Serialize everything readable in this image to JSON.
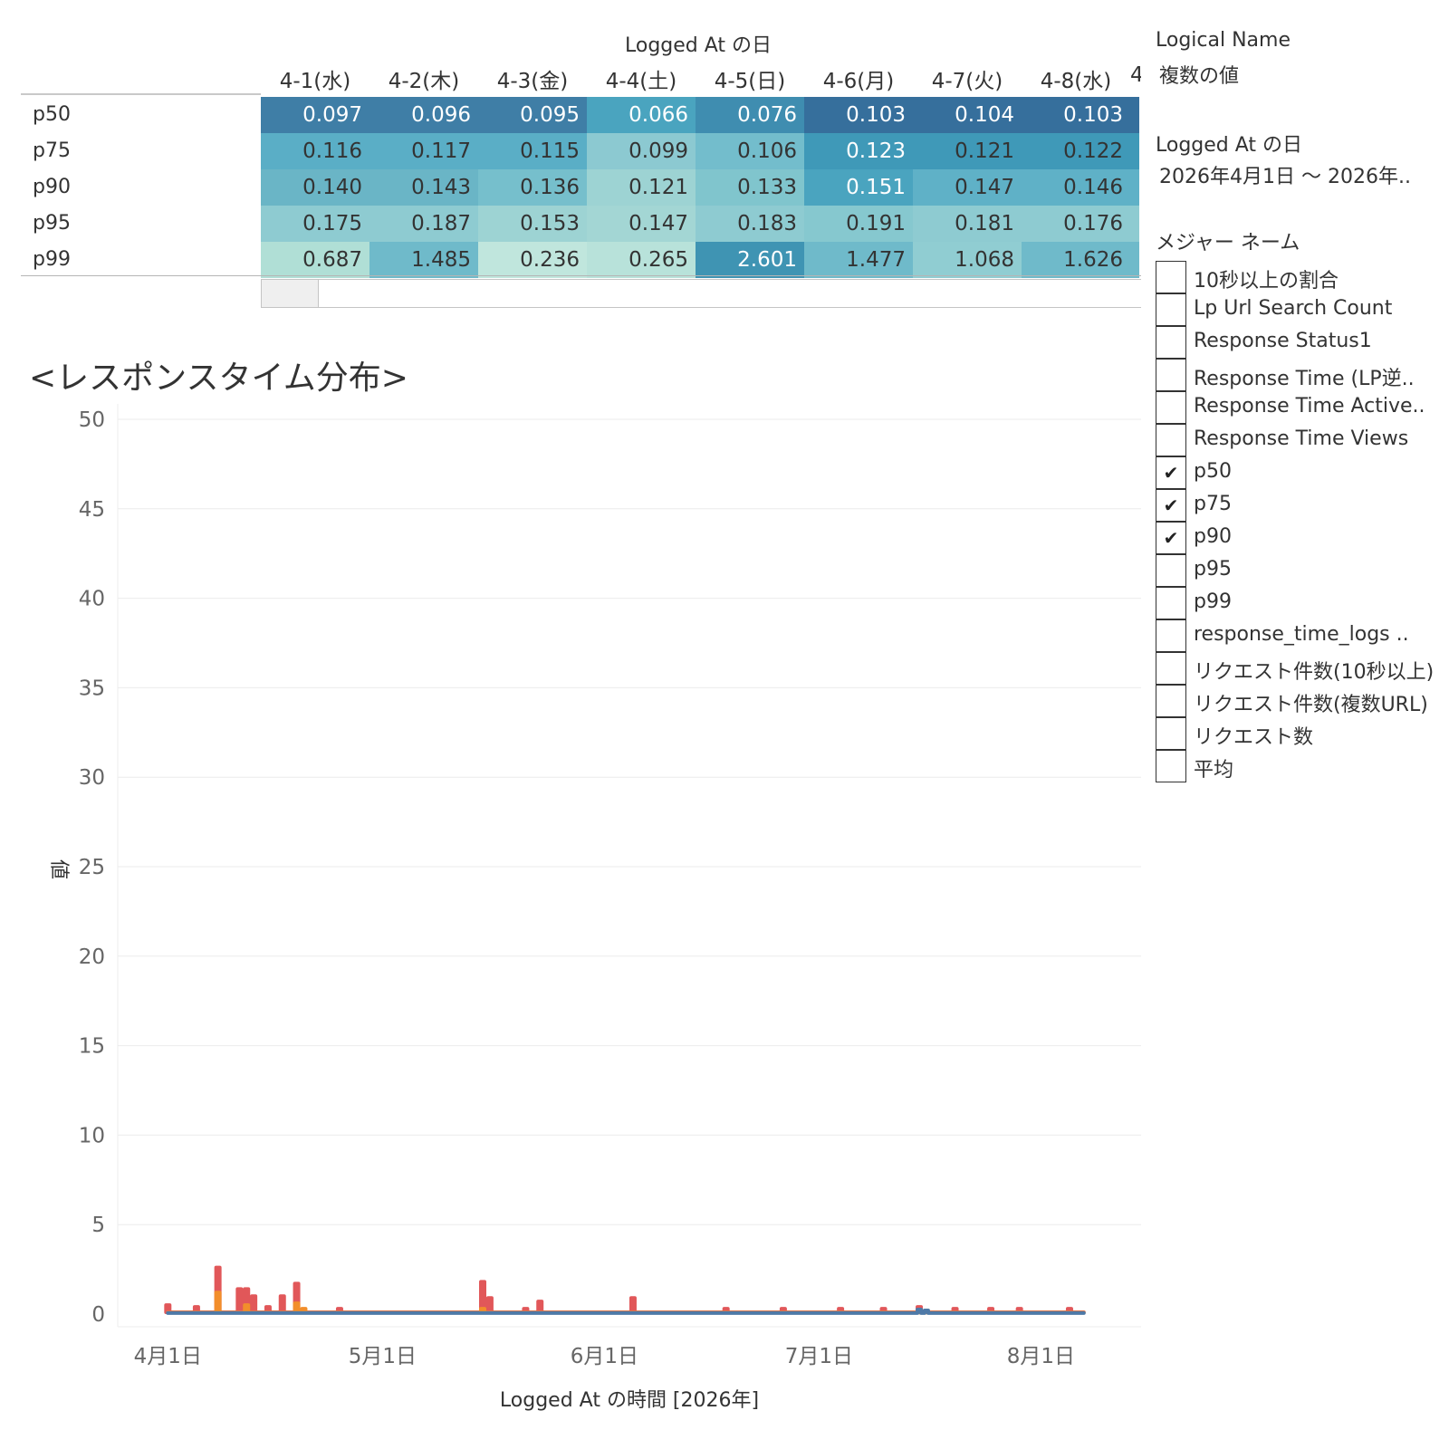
{
  "crosstab": {
    "column_title": "Logged At の日",
    "columns": [
      "4-1(水)",
      "4-2(木)",
      "4-3(金)",
      "4-4(土)",
      "4-5(日)",
      "4-6(月)",
      "4-7(火)",
      "4-8(水)",
      "4"
    ],
    "rows": [
      {
        "label": "p50",
        "values": [
          "0.097",
          "0.096",
          "0.095",
          "0.066",
          "0.076",
          "0.103",
          "0.104",
          "0.103"
        ]
      },
      {
        "label": "p75",
        "values": [
          "0.116",
          "0.117",
          "0.115",
          "0.099",
          "0.106",
          "0.123",
          "0.121",
          "0.122"
        ]
      },
      {
        "label": "p90",
        "values": [
          "0.140",
          "0.143",
          "0.136",
          "0.121",
          "0.133",
          "0.151",
          "0.147",
          "0.146"
        ]
      },
      {
        "label": "p95",
        "values": [
          "0.175",
          "0.187",
          "0.153",
          "0.147",
          "0.183",
          "0.191",
          "0.181",
          "0.176"
        ]
      },
      {
        "label": "p99",
        "values": [
          "0.687",
          "1.485",
          "0.236",
          "0.265",
          "2.601",
          "1.477",
          "1.068",
          "1.626"
        ]
      }
    ],
    "cell_colors": [
      [
        "#3f7ea6",
        "#3f7ea6",
        "#3f7ea6",
        "#4aa4bf",
        "#3f8db0",
        "#366f9c",
        "#366f9c",
        "#366f9c",
        "#366f9c"
      ],
      [
        "#5aaec6",
        "#5aaec6",
        "#5aaec6",
        "#8cc9d1",
        "#73bdcc",
        "#3f99b8",
        "#3f99b8",
        "#3f99b8",
        "#3f99b8"
      ],
      [
        "#6ab5c6",
        "#6ab5c6",
        "#76bfcc",
        "#9dd3d3",
        "#80c5cd",
        "#4aa4bf",
        "#5fb1c7",
        "#5fb1c7",
        "#5fb1c7"
      ],
      [
        "#8ecbd1",
        "#8ecbd1",
        "#9dd3d3",
        "#a3d6d4",
        "#8ecbd1",
        "#86c8cf",
        "#8ecbd1",
        "#8ecbd1",
        "#8ecbd1"
      ],
      [
        "#b0dfd6",
        "#6fbaca",
        "#c0e6dd",
        "#b8e2da",
        "#3f94b3",
        "#6fbaca",
        "#90cdd2",
        "#6fbaca",
        "#6fbaca"
      ]
    ],
    "cell_text_colors": [
      [
        "#ffffff",
        "#ffffff",
        "#ffffff",
        "#ffffff",
        "#ffffff",
        "#ffffff",
        "#ffffff",
        "#ffffff",
        "#ffffff"
      ],
      [
        "#333333",
        "#333333",
        "#333333",
        "#333333",
        "#333333",
        "#ffffff",
        "#333333",
        "#333333",
        "#333333"
      ],
      [
        "#333333",
        "#333333",
        "#333333",
        "#333333",
        "#333333",
        "#ffffff",
        "#333333",
        "#333333",
        "#333333"
      ],
      [
        "#333333",
        "#333333",
        "#333333",
        "#333333",
        "#333333",
        "#333333",
        "#333333",
        "#333333",
        "#333333"
      ],
      [
        "#333333",
        "#333333",
        "#333333",
        "#333333",
        "#ffffff",
        "#333333",
        "#333333",
        "#333333",
        "#333333"
      ]
    ]
  },
  "chart_title": "<レスポンスタイム分布>",
  "chart_data": {
    "type": "line",
    "xlabel": "Logged At の時間 [2026年]",
    "ylabel": "値",
    "x_range": [
      "2026-03-25",
      "2026-08-15"
    ],
    "ylim": [
      0,
      50
    ],
    "y_ticks": [
      0,
      5,
      10,
      15,
      20,
      25,
      30,
      35,
      40,
      45,
      50
    ],
    "x_ticks": [
      {
        "date": "2026-04-01",
        "label": "4月1日"
      },
      {
        "date": "2026-05-01",
        "label": "5月1日"
      },
      {
        "date": "2026-06-01",
        "label": "6月1日"
      },
      {
        "date": "2026-07-01",
        "label": "7月1日"
      },
      {
        "date": "2026-08-01",
        "label": "8月1日"
      }
    ],
    "grid": true,
    "series": [
      {
        "name": "p90",
        "color": "#e15759",
        "baseline": 0.1,
        "spikes": [
          [
            "2026-04-01",
            0.5
          ],
          [
            "2026-04-05",
            0.4
          ],
          [
            "2026-04-08",
            2.6
          ],
          [
            "2026-04-11",
            1.4
          ],
          [
            "2026-04-12",
            1.4
          ],
          [
            "2026-04-13",
            1.0
          ],
          [
            "2026-04-15",
            0.4
          ],
          [
            "2026-04-17",
            1.0
          ],
          [
            "2026-04-19",
            1.7
          ],
          [
            "2026-04-25",
            0.3
          ],
          [
            "2026-05-15",
            1.8
          ],
          [
            "2026-05-16",
            0.9
          ],
          [
            "2026-05-21",
            0.3
          ],
          [
            "2026-05-23",
            0.7
          ],
          [
            "2026-06-05",
            0.9
          ],
          [
            "2026-06-18",
            0.3
          ],
          [
            "2026-06-26",
            0.3
          ],
          [
            "2026-07-04",
            0.3
          ],
          [
            "2026-07-10",
            0.3
          ],
          [
            "2026-07-15",
            0.4
          ],
          [
            "2026-07-20",
            0.3
          ],
          [
            "2026-07-25",
            0.3
          ],
          [
            "2026-07-29",
            0.3
          ],
          [
            "2026-08-05",
            0.3
          ]
        ]
      },
      {
        "name": "p75",
        "color": "#f28e2b",
        "baseline": 0.08,
        "spikes": [
          [
            "2026-04-08",
            1.2
          ],
          [
            "2026-04-12",
            0.5
          ],
          [
            "2026-04-19",
            0.6
          ],
          [
            "2026-04-20",
            0.3
          ],
          [
            "2026-05-15",
            0.3
          ]
        ]
      },
      {
        "name": "p50",
        "color": "#4e79a7",
        "baseline": 0.06,
        "spikes": [
          [
            "2026-07-15",
            0.25
          ],
          [
            "2026-07-16",
            0.2
          ]
        ]
      }
    ]
  },
  "sidepanel": {
    "logical_name": {
      "title": "Logical Name",
      "value": "複数の値"
    },
    "date_filter": {
      "title": "Logged At の日",
      "value": "2026年4月1日 〜 2026年.."
    },
    "measure_filter": {
      "title": "メジャー ネーム",
      "check_mark": "✔",
      "items": [
        {
          "label": "10秒以上の割合",
          "checked": false
        },
        {
          "label": "Lp Url Search Count",
          "checked": false
        },
        {
          "label": "Response Status1",
          "checked": false
        },
        {
          "label": "Response Time (LP逆..",
          "checked": false
        },
        {
          "label": "Response Time Active..",
          "checked": false
        },
        {
          "label": "Response Time Views",
          "checked": false
        },
        {
          "label": "p50",
          "checked": true
        },
        {
          "label": "p75",
          "checked": true
        },
        {
          "label": "p90",
          "checked": true
        },
        {
          "label": "p95",
          "checked": false
        },
        {
          "label": "p99",
          "checked": false
        },
        {
          "label": "response_time_logs ..",
          "checked": false
        },
        {
          "label": "リクエスト件数(10秒以上)",
          "checked": false
        },
        {
          "label": "リクエスト件数(複数URL)",
          "checked": false
        },
        {
          "label": "リクエスト数",
          "checked": false
        },
        {
          "label": "平均",
          "checked": false
        }
      ]
    }
  }
}
